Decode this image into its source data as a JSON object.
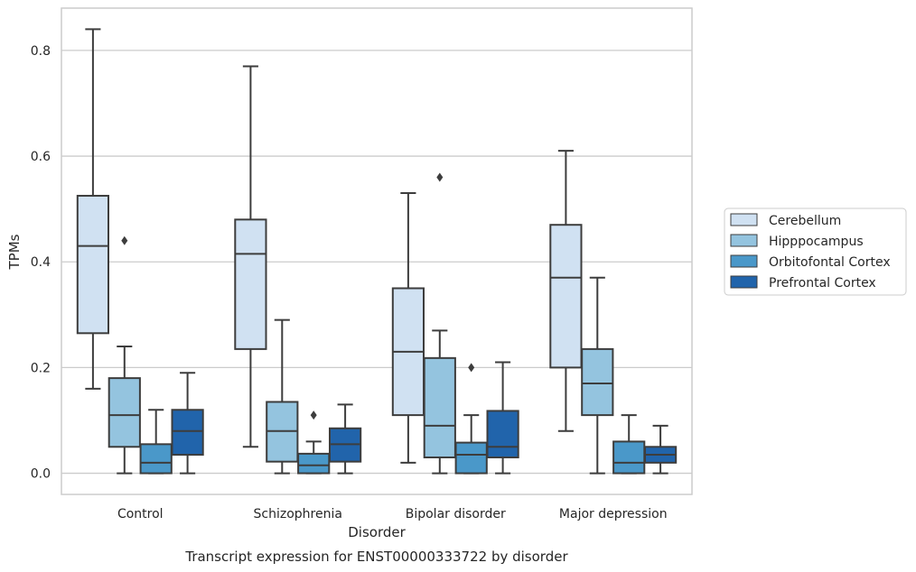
{
  "chart_data": {
    "type": "box",
    "title": "Transcript expression for ENST00000333722 by disorder",
    "xlabel": "Disorder",
    "ylabel": "TPMs",
    "ylim": [
      -0.04,
      0.88
    ],
    "yticks": [
      0.0,
      0.2,
      0.4,
      0.6,
      0.8
    ],
    "ytick_labels": [
      "0.0",
      "0.2",
      "0.4",
      "0.6",
      "0.8"
    ],
    "grid": true,
    "legend_position": "right",
    "categories": [
      "Control",
      "Schizophrenia",
      "Bipolar disorder",
      "Major depression"
    ],
    "series": [
      {
        "name": "Cerebellum",
        "color": "#d0e1f2",
        "boxes": [
          {
            "whislo": 0.16,
            "q1": 0.265,
            "med": 0.43,
            "q3": 0.525,
            "whishi": 0.84,
            "fliers": []
          },
          {
            "whislo": 0.05,
            "q1": 0.235,
            "med": 0.415,
            "q3": 0.48,
            "whishi": 0.77,
            "fliers": []
          },
          {
            "whislo": 0.02,
            "q1": 0.11,
            "med": 0.23,
            "q3": 0.35,
            "whishi": 0.53,
            "fliers": []
          },
          {
            "whislo": 0.08,
            "q1": 0.2,
            "med": 0.37,
            "q3": 0.47,
            "whishi": 0.61,
            "fliers": []
          }
        ]
      },
      {
        "name": "Hipppocampus",
        "color": "#94c4df",
        "boxes": [
          {
            "whislo": 0.0,
            "q1": 0.05,
            "med": 0.11,
            "q3": 0.18,
            "whishi": 0.24,
            "fliers": [
              0.44
            ]
          },
          {
            "whislo": 0.0,
            "q1": 0.022,
            "med": 0.08,
            "q3": 0.135,
            "whishi": 0.29,
            "fliers": []
          },
          {
            "whislo": 0.0,
            "q1": 0.03,
            "med": 0.09,
            "q3": 0.218,
            "whishi": 0.27,
            "fliers": [
              0.56
            ]
          },
          {
            "whislo": 0.0,
            "q1": 0.11,
            "med": 0.17,
            "q3": 0.235,
            "whishi": 0.37,
            "fliers": []
          }
        ]
      },
      {
        "name": "Orbitofontal Cortex",
        "color": "#4a98c9",
        "boxes": [
          {
            "whislo": 0.0,
            "q1": 0.0,
            "med": 0.02,
            "q3": 0.055,
            "whishi": 0.12,
            "fliers": []
          },
          {
            "whislo": 0.0,
            "q1": 0.0,
            "med": 0.015,
            "q3": 0.037,
            "whishi": 0.06,
            "fliers": [
              0.11
            ]
          },
          {
            "whislo": 0.0,
            "q1": 0.0,
            "med": 0.035,
            "q3": 0.058,
            "whishi": 0.11,
            "fliers": [
              0.2
            ]
          },
          {
            "whislo": 0.0,
            "q1": 0.0,
            "med": 0.02,
            "q3": 0.06,
            "whishi": 0.11,
            "fliers": []
          }
        ]
      },
      {
        "name": "Prefrontal Cortex",
        "color": "#2164ab",
        "boxes": [
          {
            "whislo": 0.0,
            "q1": 0.035,
            "med": 0.08,
            "q3": 0.12,
            "whishi": 0.19,
            "fliers": []
          },
          {
            "whislo": 0.0,
            "q1": 0.022,
            "med": 0.055,
            "q3": 0.085,
            "whishi": 0.13,
            "fliers": []
          },
          {
            "whislo": 0.0,
            "q1": 0.03,
            "med": 0.05,
            "q3": 0.118,
            "whishi": 0.21,
            "fliers": []
          },
          {
            "whislo": 0.0,
            "q1": 0.02,
            "med": 0.035,
            "q3": 0.05,
            "whishi": 0.09,
            "fliers": []
          }
        ]
      }
    ]
  }
}
